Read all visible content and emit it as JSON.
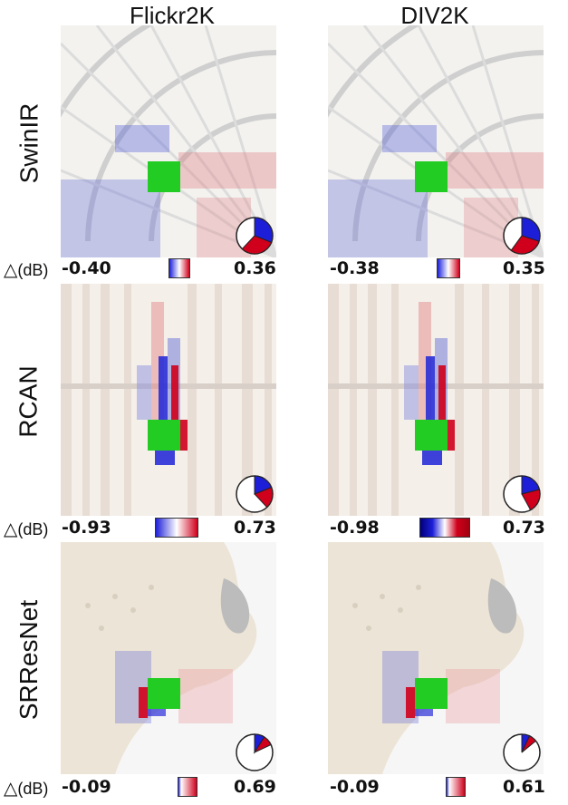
{
  "columns": [
    "Flickr2K",
    "DIV2K"
  ],
  "rows": [
    {
      "model": "SwinIR",
      "delta_label": "(dB)",
      "panels": [
        {
          "min": "-0.40",
          "max": "0.36",
          "pie_fraction": 0.62
        },
        {
          "min": "-0.38",
          "max": "0.35",
          "pie_fraction": 0.6
        }
      ]
    },
    {
      "model": "RCAN",
      "delta_label": "(dB)",
      "panels": [
        {
          "min": "-0.93",
          "max": "0.73",
          "pie_fraction": 0.38
        },
        {
          "min": "-0.98",
          "max": "0.73",
          "pie_fraction": 0.42
        }
      ]
    },
    {
      "model": "SRResNet",
      "delta_label": "(dB)",
      "panels": [
        {
          "min": "-0.09",
          "max": "0.69",
          "pie_fraction": 0.18
        },
        {
          "min": "-0.09",
          "max": "0.61",
          "pie_fraction": 0.14
        }
      ]
    }
  ],
  "colors": {
    "positive": "#d0001c",
    "negative": "#1d1fd8",
    "center": "#22cc22"
  }
}
